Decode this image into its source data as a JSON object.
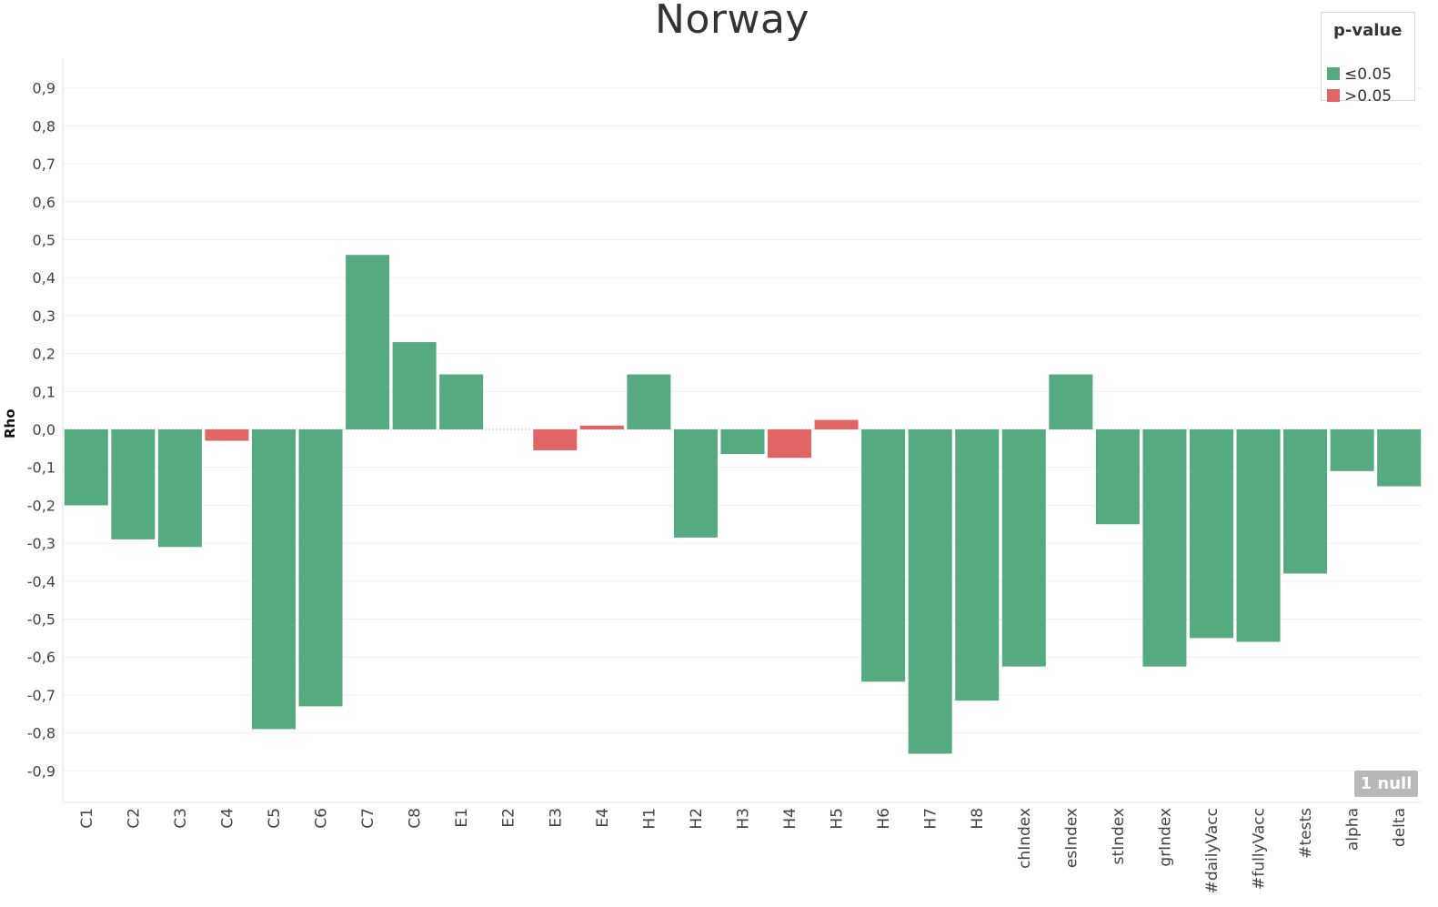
{
  "chart_data": {
    "type": "bar",
    "title": "Norway",
    "xlabel": "",
    "ylabel": "Rho",
    "ylim": [
      -0.98,
      0.98
    ],
    "yticks": [
      "0,9",
      "0,8",
      "0,7",
      "0,6",
      "0,5",
      "0,4",
      "0,3",
      "0,2",
      "0,1",
      "0,0",
      "-0,1",
      "-0,2",
      "-0,3",
      "-0,4",
      "-0,5",
      "-0,6",
      "-0,7",
      "-0,8",
      "-0,9"
    ],
    "ytick_values": [
      0.9,
      0.8,
      0.7,
      0.6,
      0.5,
      0.4,
      0.3,
      0.2,
      0.1,
      0.0,
      -0.1,
      -0.2,
      -0.3,
      -0.4,
      -0.5,
      -0.6,
      -0.7,
      -0.8,
      -0.9
    ],
    "grid": true,
    "legend_position": "top-right",
    "legend": {
      "title": "p-value",
      "entries": [
        {
          "label": "≤0.05",
          "color": "#55aa7f"
        },
        {
          "label": ">0.05",
          "color": "#e06666"
        }
      ]
    },
    "null_badge": "1 null",
    "categories": [
      "C1",
      "C2",
      "C3",
      "C4",
      "C5",
      "C6",
      "C7",
      "C8",
      "E1",
      "E2",
      "E3",
      "E4",
      "H1",
      "H2",
      "H3",
      "H4",
      "H5",
      "H6",
      "H7",
      "H8",
      "chIndex",
      "esIndex",
      "stIndex",
      "grIndex",
      "#dailyVacc",
      "#fullyVacc",
      "#tests",
      "alpha",
      "delta"
    ],
    "values": [
      -0.2,
      -0.29,
      -0.31,
      -0.03,
      -0.79,
      -0.73,
      0.46,
      0.23,
      0.145,
      null,
      -0.055,
      0.01,
      0.145,
      -0.285,
      -0.065,
      -0.075,
      0.025,
      -0.665,
      -0.855,
      -0.715,
      -0.625,
      0.145,
      -0.25,
      -0.625,
      -0.55,
      -0.56,
      -0.38,
      -0.11,
      -0.15
    ],
    "significant": [
      true,
      true,
      true,
      false,
      true,
      true,
      true,
      true,
      true,
      null,
      false,
      false,
      true,
      true,
      true,
      false,
      false,
      true,
      true,
      true,
      true,
      true,
      true,
      true,
      true,
      true,
      true,
      true,
      true
    ],
    "colors": {
      "significant": "#55aa7f",
      "not_significant": "#e06666",
      "gridline": "#efefef",
      "zero_line": "#c8c8c8"
    }
  }
}
